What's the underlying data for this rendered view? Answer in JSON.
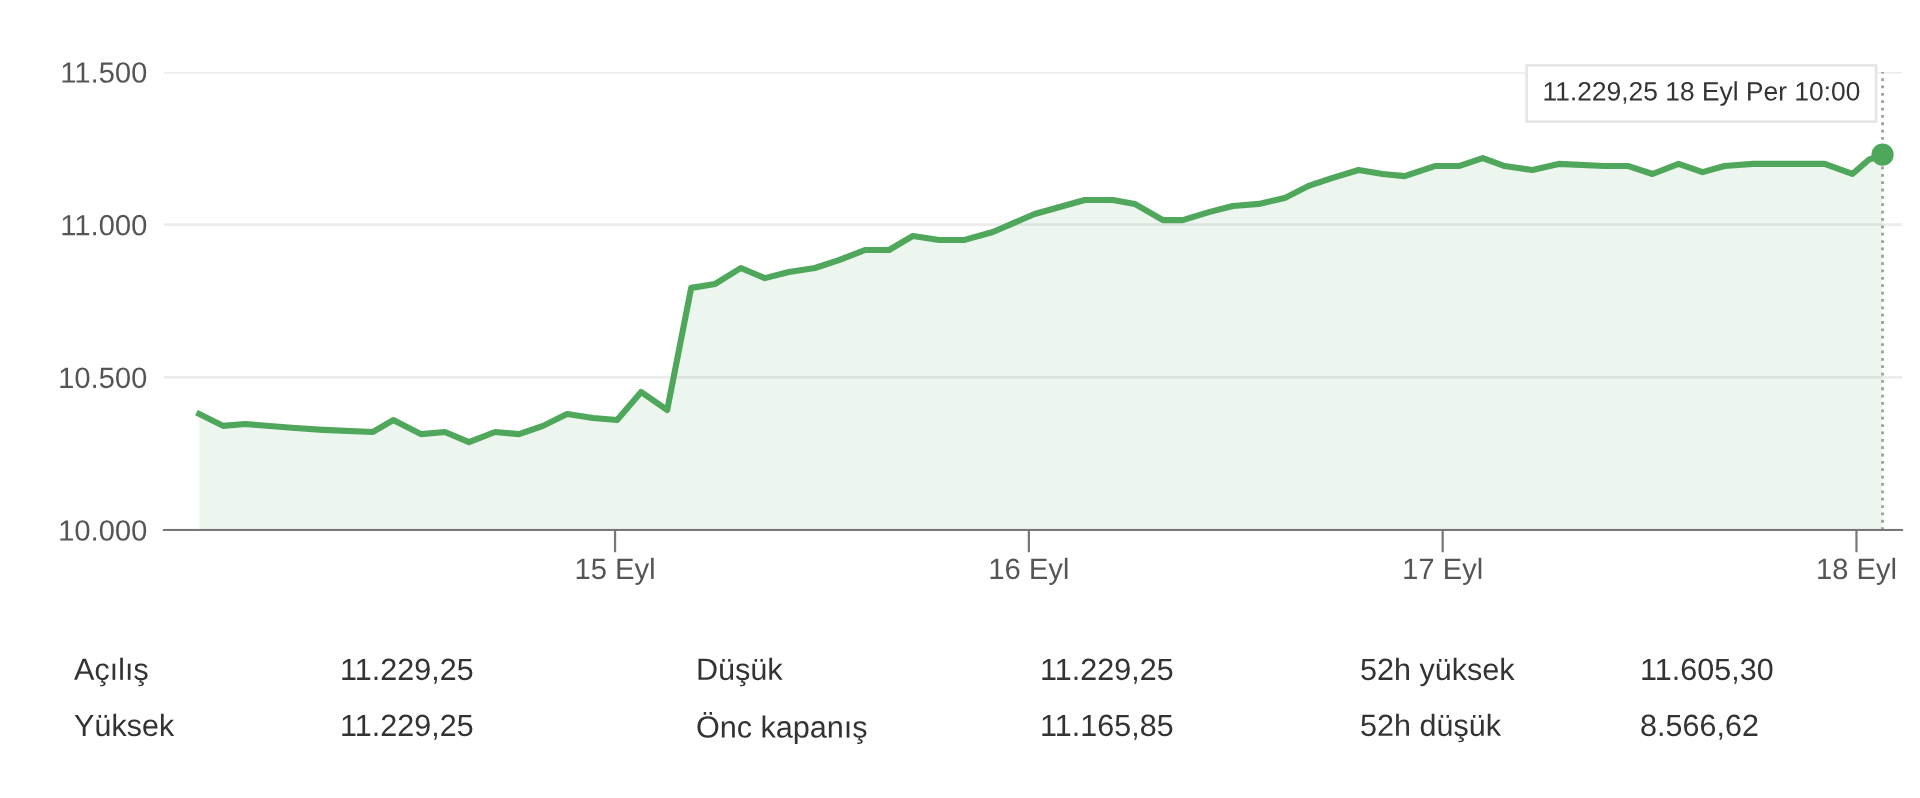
{
  "chart_data": {
    "type": "area",
    "x": [
      13.995,
      14.053,
      14.106,
      14.227,
      14.295,
      14.415,
      14.464,
      14.531,
      14.589,
      14.647,
      14.71,
      14.768,
      14.826,
      14.884,
      14.947,
      15.005,
      15.063,
      15.126,
      15.184,
      15.242,
      15.304,
      15.362,
      15.42,
      15.483,
      15.541,
      15.604,
      15.662,
      15.72,
      15.783,
      15.845,
      15.913,
      16.014,
      16.135,
      16.203,
      16.256,
      16.324,
      16.372,
      16.435,
      16.493,
      16.556,
      16.618,
      16.676,
      16.734,
      16.797,
      16.855,
      16.908,
      16.981,
      17.039,
      17.097,
      17.15,
      17.217,
      17.28,
      17.391,
      17.449,
      17.507,
      17.57,
      17.628,
      17.681,
      17.749,
      17.86,
      17.923,
      17.99,
      18.029,
      18.063
    ],
    "series": [
      {
        "color": "#4ea75a",
        "values": [
          10380,
          10341,
          10347,
          10334,
          10328,
          10321,
          10360,
          10314,
          10321,
          10288,
          10321,
          10314,
          10341,
          10380,
          10367,
          10360,
          10452,
          10393,
          10793,
          10806,
          10858,
          10825,
          10845,
          10858,
          10884,
          10917,
          10917,
          10963,
          10950,
          10950,
          10976,
          11035,
          11081,
          11081,
          11068,
          11015,
          11015,
          11041,
          11061,
          11068,
          11087,
          11127,
          11153,
          11179,
          11166,
          11159,
          11192,
          11192,
          11218,
          11192,
          11179,
          11199,
          11192,
          11192,
          11166,
          11199,
          11172,
          11192,
          11199,
          11199,
          11199,
          11166,
          11212,
          11229.25
        ]
      },
      {
        "type": "scatter",
        "color": "#4ea75a",
        "x": [
          18.063
        ],
        "values": [
          11229.25
        ]
      }
    ],
    "xlim": [
      13.91,
      18.11
    ],
    "xticks": [
      {
        "value": 15,
        "label": "15 Eyl"
      },
      {
        "value": 16,
        "label": "16 Eyl"
      },
      {
        "value": 17,
        "label": "17 Eyl"
      },
      {
        "value": 18,
        "label": "18 Eyl"
      }
    ],
    "ylim": [
      10000,
      11500
    ],
    "yticks": [
      {
        "value": 10000,
        "label": "10.000"
      },
      {
        "value": 10500,
        "label": "10.500"
      },
      {
        "value": 11000,
        "label": "11.000"
      },
      {
        "value": 11500,
        "label": "11.500"
      }
    ],
    "grid": "y",
    "ref_lines": [
      {
        "axis": "x",
        "value": 18.063,
        "label": null,
        "line_style": "dotted",
        "color": "#9e9e9e"
      }
    ],
    "annotations": [
      {
        "text": "11.229,25 18 Eyl Per 10:00",
        "x": 18.063,
        "y": 11229.25
      },
      "Açılış",
      "11.229,25",
      "Düşük",
      "11.229,25",
      "52h yüksek",
      "11.605,30",
      "Yüksek",
      "11.229,25",
      "Önc kapanış",
      "11.165,85",
      "52h düşük",
      "8.566,62"
    ]
  }
}
